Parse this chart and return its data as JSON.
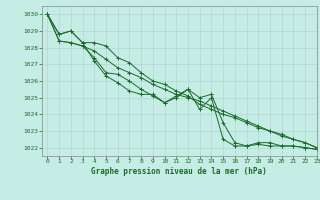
{
  "title": "Graphe pression niveau de la mer (hPa)",
  "bg_color": "#c6ece6",
  "grid_color": "#b0d8d0",
  "line_color": "#1a6b2a",
  "text_color": "#1a6b2a",
  "xlim": [
    -0.5,
    23
  ],
  "ylim": [
    1021.5,
    1030.5
  ],
  "yticks": [
    1022,
    1023,
    1024,
    1025,
    1026,
    1027,
    1028,
    1029,
    1030
  ],
  "xticks": [
    0,
    1,
    2,
    3,
    4,
    5,
    6,
    7,
    8,
    9,
    10,
    11,
    12,
    13,
    14,
    15,
    16,
    17,
    18,
    19,
    20,
    21,
    22,
    23
  ],
  "xtick_labels": [
    "0",
    "1",
    "2",
    "3",
    "4",
    "5",
    "6",
    "7",
    "8",
    "9",
    "10",
    "11",
    "12",
    "13",
    "14",
    "15",
    "16",
    "17",
    "18",
    "19",
    "20",
    "21",
    "22",
    "23"
  ],
  "series": [
    [
      1030.0,
      1028.8,
      1029.0,
      1028.3,
      1027.2,
      1026.3,
      1025.9,
      1025.4,
      1025.2,
      1025.2,
      1024.7,
      1025.0,
      1025.5,
      1024.3,
      1025.0,
      1022.5,
      1022.1,
      1022.1,
      1022.3,
      1022.3,
      1022.1,
      1022.1,
      1022.0,
      1021.9
    ],
    [
      1030.0,
      1028.4,
      1028.3,
      1028.1,
      1027.8,
      1027.3,
      1026.8,
      1026.5,
      1026.2,
      1025.8,
      1025.5,
      1025.2,
      1025.0,
      1024.8,
      1024.5,
      1024.2,
      1023.9,
      1023.6,
      1023.3,
      1023.0,
      1022.8,
      1022.5,
      1022.3,
      1022.0
    ],
    [
      1030.0,
      1028.4,
      1028.3,
      1028.1,
      1027.4,
      1026.5,
      1026.4,
      1026.0,
      1025.5,
      1025.1,
      1024.7,
      1025.1,
      1025.5,
      1025.0,
      1025.2,
      1023.5,
      1022.3,
      1022.1,
      1022.2,
      1022.1,
      1022.1,
      1022.1,
      1022.0,
      1021.9
    ],
    [
      1030.0,
      1028.8,
      1029.0,
      1028.3,
      1028.3,
      1028.1,
      1027.4,
      1027.1,
      1026.5,
      1026.0,
      1025.8,
      1025.4,
      1025.1,
      1024.6,
      1024.3,
      1024.0,
      1023.8,
      1023.5,
      1023.2,
      1023.0,
      1022.7,
      1022.5,
      1022.3,
      1022.0
    ]
  ]
}
